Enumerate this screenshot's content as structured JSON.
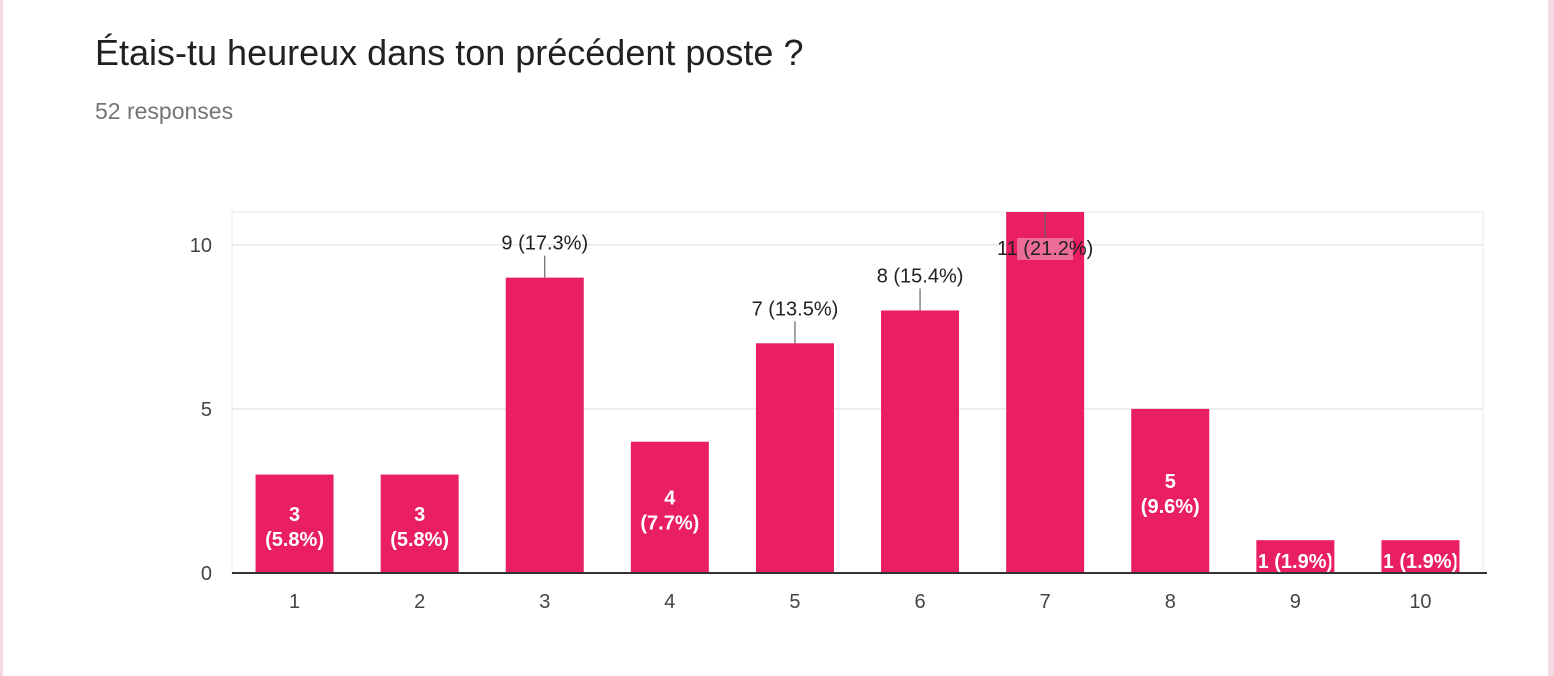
{
  "card": {
    "title": "Étais-tu heureux dans ton précédent poste ?",
    "responses": "52 responses"
  },
  "colors": {
    "bar": "#e91e63",
    "grid": "#e8e8e8",
    "axis": "#333333"
  },
  "chart_data": {
    "type": "bar",
    "categories": [
      "1",
      "2",
      "3",
      "4",
      "5",
      "6",
      "7",
      "8",
      "9",
      "10"
    ],
    "values": [
      3,
      3,
      9,
      4,
      7,
      8,
      11,
      5,
      1,
      1
    ],
    "data_labels": [
      "3 (5.8%)",
      "3 (5.8%)",
      "9 (17.3%)",
      "4 (7.7%)",
      "7 (13.5%)",
      "8 (15.4%)",
      "11 (21.2%)",
      "5 (9.6%)",
      "1 (1.9%)",
      "1 (1.9%)"
    ],
    "yticks": [
      0,
      5,
      10
    ],
    "ylim": [
      0,
      11
    ],
    "grid": true,
    "xlabel": "",
    "ylabel": ""
  }
}
